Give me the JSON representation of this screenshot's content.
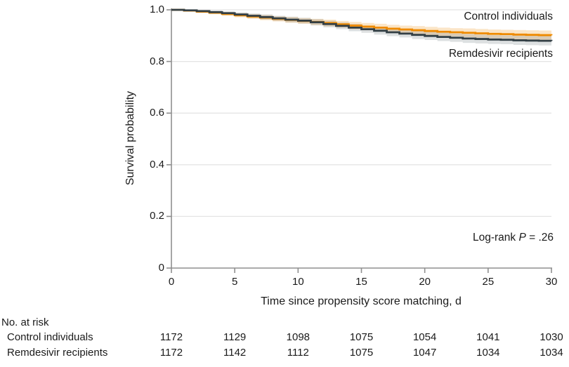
{
  "colors": {
    "control_line": "#EE8A00",
    "control_band": "rgba(238,138,0,0.22)",
    "remdesivir_line": "#333F45",
    "remdesivir_band": "rgba(100,112,118,0.22)",
    "gridline": "#E4E4E4",
    "axis": "#8F8F8F",
    "text": "#1A1A1A"
  },
  "annotation": {
    "prefix": "Log-rank ",
    "p_symbol": "P",
    "suffix": " = .26"
  },
  "chart_data": {
    "type": "line",
    "subtype": "kaplan-meier-step",
    "title": "",
    "xlabel": "Time since propensity score matching, d",
    "ylabel": "Survival probability",
    "xlim": [
      0,
      30
    ],
    "ylim": [
      0,
      1.0
    ],
    "x_ticks": [
      0,
      5,
      10,
      15,
      20,
      25,
      30
    ],
    "y_ticks": [
      {
        "label": "1.0",
        "value": 1.0
      },
      {
        "label": "0.8",
        "value": 0.8
      },
      {
        "label": "0.6",
        "value": 0.6
      },
      {
        "label": "0.4",
        "value": 0.4
      },
      {
        "label": "0.2",
        "value": 0.2
      },
      {
        "label": "0",
        "value": 0.0
      }
    ],
    "grid": "horizontal",
    "legend_position": "direct-labels-at-line-ends",
    "annotation": "Log-rank P = .26",
    "x": [
      0,
      1,
      2,
      3,
      4,
      5,
      6,
      7,
      8,
      9,
      10,
      11,
      12,
      13,
      14,
      15,
      16,
      17,
      18,
      19,
      20,
      21,
      22,
      23,
      24,
      25,
      26,
      27,
      28,
      29,
      30
    ],
    "series": [
      {
        "name": "Control individuals",
        "values": [
          1.0,
          0.997,
          0.993,
          0.989,
          0.984,
          0.979,
          0.974,
          0.97,
          0.965,
          0.961,
          0.957,
          0.953,
          0.949,
          0.944,
          0.939,
          0.935,
          0.931,
          0.927,
          0.924,
          0.921,
          0.918,
          0.915,
          0.913,
          0.911,
          0.909,
          0.907,
          0.906,
          0.904,
          0.903,
          0.902,
          0.901
        ],
        "ci_half_width": [
          0.0,
          0.003,
          0.005,
          0.006,
          0.007,
          0.008,
          0.009,
          0.01,
          0.01,
          0.011,
          0.011,
          0.012,
          0.013,
          0.013,
          0.014,
          0.014,
          0.015,
          0.015,
          0.015,
          0.016,
          0.016,
          0.016,
          0.016,
          0.017,
          0.017,
          0.017,
          0.017,
          0.018,
          0.018,
          0.018,
          0.018
        ]
      },
      {
        "name": "Remdesivir recipients",
        "values": [
          1.0,
          0.998,
          0.995,
          0.991,
          0.987,
          0.982,
          0.977,
          0.972,
          0.967,
          0.962,
          0.958,
          0.952,
          0.945,
          0.938,
          0.931,
          0.925,
          0.919,
          0.913,
          0.908,
          0.903,
          0.899,
          0.895,
          0.892,
          0.889,
          0.887,
          0.885,
          0.884,
          0.882,
          0.881,
          0.88,
          0.879
        ],
        "ci_half_width": [
          0.0,
          0.003,
          0.005,
          0.006,
          0.007,
          0.008,
          0.009,
          0.01,
          0.01,
          0.011,
          0.011,
          0.012,
          0.013,
          0.013,
          0.014,
          0.014,
          0.015,
          0.015,
          0.015,
          0.016,
          0.016,
          0.016,
          0.016,
          0.017,
          0.017,
          0.017,
          0.017,
          0.018,
          0.018,
          0.018,
          0.018
        ]
      }
    ]
  },
  "risk_table": {
    "title": "No. at risk",
    "times": [
      0,
      5,
      10,
      15,
      20,
      25,
      30
    ],
    "rows": [
      {
        "label": "Control individuals",
        "counts": [
          "1172",
          "1129",
          "1098",
          "1075",
          "1054",
          "1041",
          "1030"
        ]
      },
      {
        "label": "Remdesivir recipients",
        "counts": [
          "1172",
          "1142",
          "1112",
          "1075",
          "1047",
          "1034",
          "1034"
        ]
      }
    ]
  }
}
